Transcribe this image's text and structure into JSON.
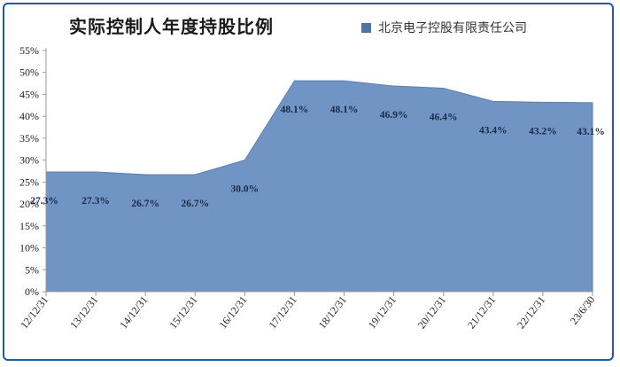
{
  "chart_data": {
    "type": "area",
    "title": "实际控制人年度持股比例",
    "categories": [
      "12/12/31",
      "13/12/31",
      "14/12/31",
      "15/12/31",
      "16/12/31",
      "17/12/31",
      "18/12/31",
      "19/12/31",
      "20/12/31",
      "21/12/31",
      "22/12/31",
      "23/6/30"
    ],
    "series": [
      {
        "name": "北京电子控股有限责任公司",
        "values": [
          27.3,
          27.3,
          26.7,
          26.7,
          30.0,
          48.1,
          48.1,
          46.9,
          46.4,
          43.4,
          43.2,
          43.1
        ],
        "labels": [
          "27.3%",
          "27.3%",
          "26.7%",
          "26.7%",
          "30.0%",
          "48.1%",
          "48.1%",
          "46.9%",
          "46.4%",
          "43.4%",
          "43.2%",
          "43.1%"
        ]
      }
    ],
    "yticks": [
      "0%",
      "5%",
      "10%",
      "15%",
      "20%",
      "25%",
      "30%",
      "35%",
      "40%",
      "45%",
      "50%",
      "55%"
    ],
    "ylim": [
      0,
      55
    ],
    "legend_position": "top-right",
    "grid": false,
    "colors": {
      "area": "#7094c4",
      "area_edge": "#5b7fb3",
      "legend_swatch": "#4f73a8"
    }
  }
}
